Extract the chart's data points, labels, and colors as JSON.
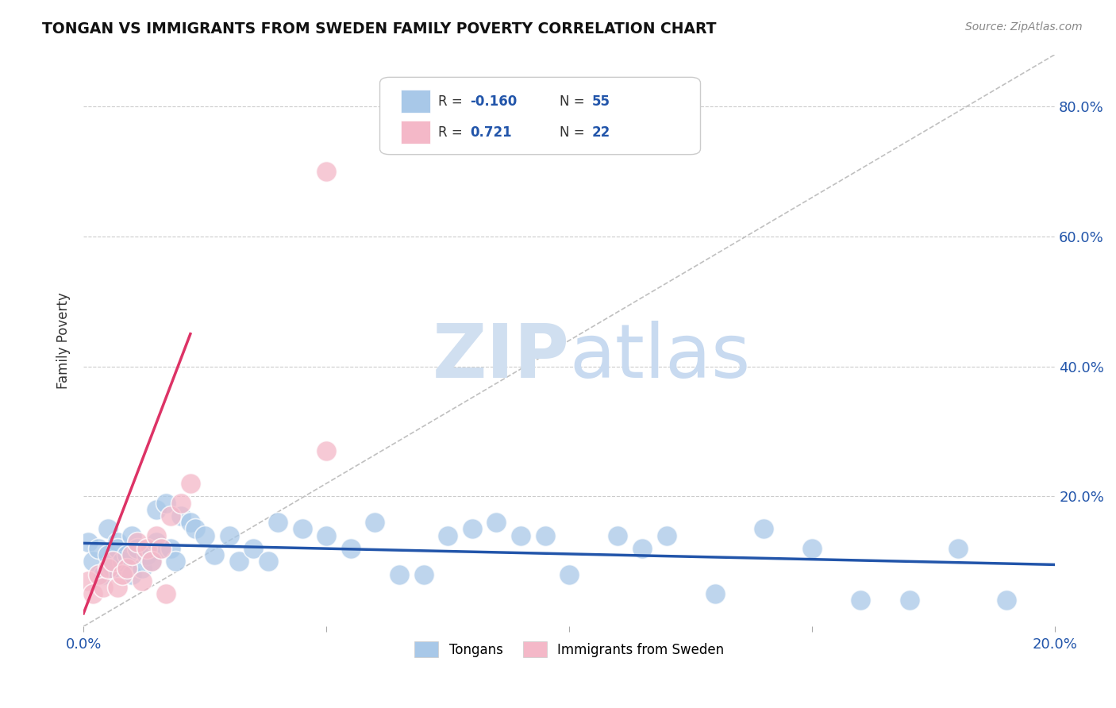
{
  "title": "TONGAN VS IMMIGRANTS FROM SWEDEN FAMILY POVERTY CORRELATION CHART",
  "source": "Source: ZipAtlas.com",
  "xlabel": "",
  "ylabel": "Family Poverty",
  "xlim": [
    0.0,
    0.2
  ],
  "ylim": [
    0.0,
    0.88
  ],
  "xticks": [
    0.0,
    0.05,
    0.1,
    0.15,
    0.2
  ],
  "xtick_labels": [
    "0.0%",
    "",
    "",
    "",
    "20.0%"
  ],
  "ytick_labels_right": [
    "20.0%",
    "40.0%",
    "60.0%",
    "80.0%"
  ],
  "ytick_vals_right": [
    0.2,
    0.4,
    0.6,
    0.8
  ],
  "blue_color": "#a8c8e8",
  "pink_color": "#f4b8c8",
  "blue_line_color": "#2255aa",
  "pink_line_color": "#dd3366",
  "grid_color": "#cccccc",
  "watermark_zip_color": "#d0dff0",
  "watermark_atlas_color": "#c8daf0",
  "background_color": "#ffffff",
  "tongans_x": [
    0.001,
    0.002,
    0.003,
    0.004,
    0.005,
    0.005,
    0.006,
    0.007,
    0.007,
    0.008,
    0.009,
    0.01,
    0.01,
    0.011,
    0.012,
    0.013,
    0.014,
    0.015,
    0.015,
    0.016,
    0.017,
    0.018,
    0.019,
    0.02,
    0.022,
    0.023,
    0.025,
    0.027,
    0.03,
    0.032,
    0.035,
    0.038,
    0.04,
    0.045,
    0.05,
    0.055,
    0.06,
    0.065,
    0.07,
    0.075,
    0.08,
    0.085,
    0.09,
    0.095,
    0.1,
    0.11,
    0.115,
    0.12,
    0.13,
    0.14,
    0.15,
    0.16,
    0.17,
    0.18,
    0.19
  ],
  "tongans_y": [
    0.13,
    0.1,
    0.12,
    0.08,
    0.11,
    0.15,
    0.09,
    0.13,
    0.12,
    0.1,
    0.11,
    0.14,
    0.08,
    0.12,
    0.09,
    0.11,
    0.1,
    0.18,
    0.13,
    0.12,
    0.19,
    0.12,
    0.1,
    0.17,
    0.16,
    0.15,
    0.14,
    0.11,
    0.14,
    0.1,
    0.12,
    0.1,
    0.16,
    0.15,
    0.14,
    0.12,
    0.16,
    0.08,
    0.08,
    0.14,
    0.15,
    0.16,
    0.14,
    0.14,
    0.08,
    0.14,
    0.12,
    0.14,
    0.05,
    0.15,
    0.12,
    0.04,
    0.04,
    0.12,
    0.04
  ],
  "sweden_x": [
    0.001,
    0.002,
    0.003,
    0.004,
    0.005,
    0.006,
    0.007,
    0.008,
    0.009,
    0.01,
    0.011,
    0.012,
    0.013,
    0.014,
    0.015,
    0.016,
    0.017,
    0.018,
    0.02,
    0.022,
    0.05,
    0.05
  ],
  "sweden_y": [
    0.07,
    0.05,
    0.08,
    0.06,
    0.09,
    0.1,
    0.06,
    0.08,
    0.09,
    0.11,
    0.13,
    0.07,
    0.12,
    0.1,
    0.14,
    0.12,
    0.05,
    0.17,
    0.19,
    0.22,
    0.7,
    0.27
  ],
  "blue_trend_x": [
    0.0,
    0.2
  ],
  "blue_trend_y": [
    0.128,
    0.095
  ],
  "pink_trend_x": [
    0.0,
    0.022
  ],
  "pink_trend_y": [
    0.02,
    0.45
  ]
}
